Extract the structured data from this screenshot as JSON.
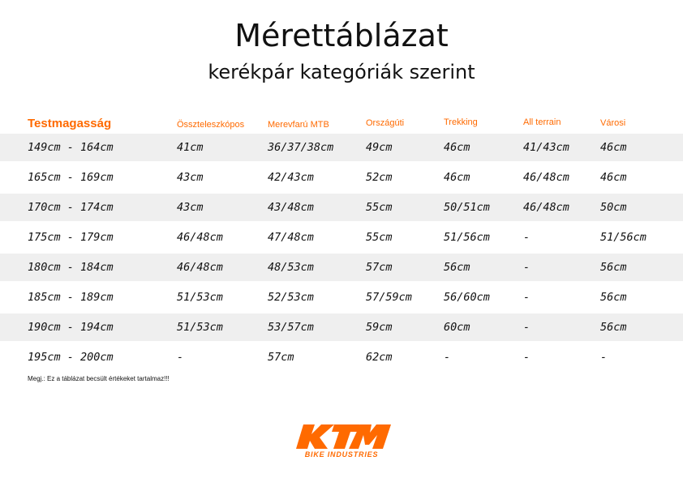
{
  "title": "Mérettáblázat",
  "subtitle": "kerékpár kategóriák szerint",
  "columns": [
    "Testmagasság",
    "Összteleszkópos",
    "Merevfarú MTB",
    "Országúti",
    "Trekking",
    "All terrain",
    "Városi"
  ],
  "rows": [
    [
      "149cm - 164cm",
      "41cm",
      "36/37/38cm",
      "49cm",
      "46cm",
      "41/43cm",
      "46cm"
    ],
    [
      "165cm - 169cm",
      "43cm",
      "42/43cm",
      "52cm",
      "46cm",
      "46/48cm",
      "46cm"
    ],
    [
      "170cm - 174cm",
      "43cm",
      "43/48cm",
      "55cm",
      "50/51cm",
      "46/48cm",
      "50cm"
    ],
    [
      "175cm - 179cm",
      "46/48cm",
      "47/48cm",
      "55cm",
      "51/56cm",
      "-",
      "51/56cm"
    ],
    [
      "180cm - 184cm",
      "46/48cm",
      "48/53cm",
      "57cm",
      "56cm",
      "-",
      "56cm"
    ],
    [
      "185cm - 189cm",
      "51/53cm",
      "52/53cm",
      "57/59cm",
      "56/60cm",
      "-",
      "56cm"
    ],
    [
      "190cm - 194cm",
      "51/53cm",
      "53/57cm",
      "59cm",
      "60cm",
      "-",
      "56cm"
    ],
    [
      "195cm - 200cm",
      "-",
      "57cm",
      "62cm",
      "-",
      "-",
      "-"
    ]
  ],
  "note": "Megj.: Ez a táblázat becsült értékeket tartalmaz!!!",
  "logo": {
    "text": "KTM",
    "tagline": "BIKE INDUSTRIES",
    "color": "#ff6a00"
  },
  "colors": {
    "accent": "#ff6a00",
    "row_shade": "#efefef"
  }
}
